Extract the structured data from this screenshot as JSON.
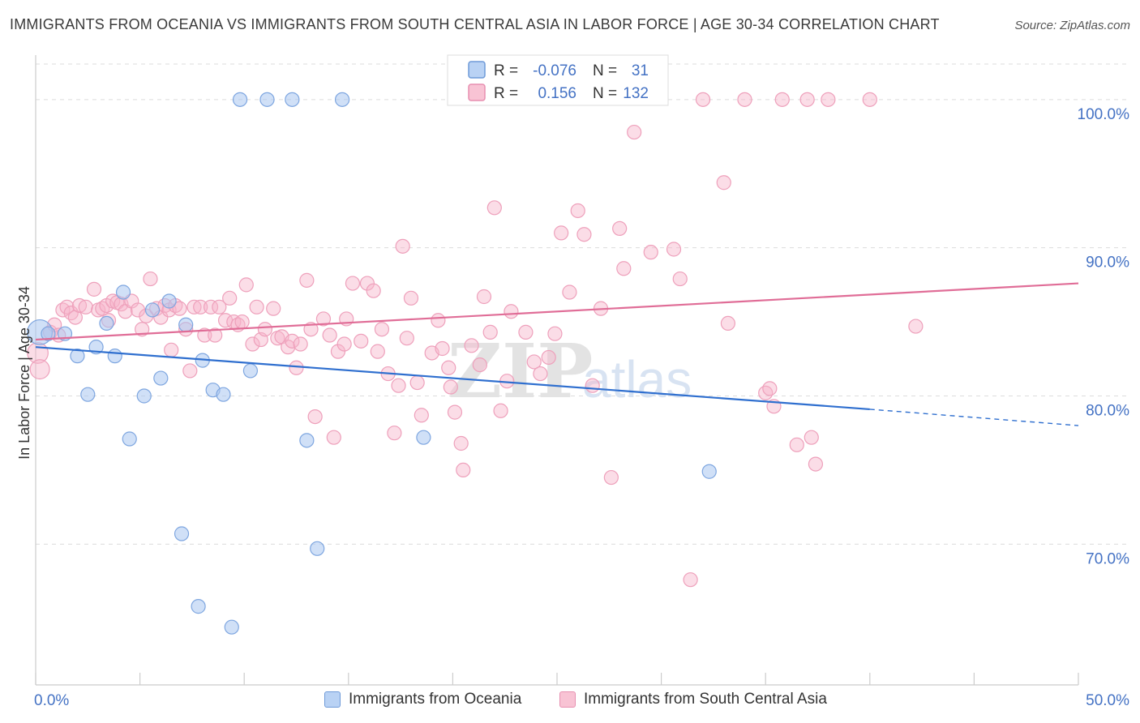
{
  "title": "IMMIGRANTS FROM OCEANIA VS IMMIGRANTS FROM SOUTH CENTRAL ASIA IN LABOR FORCE | AGE 30-34 CORRELATION CHART",
  "source": "Source: ZipAtlas.com",
  "watermark": {
    "zip": "ZIP",
    "atlas": "atlas"
  },
  "chart_data": {
    "type": "scatter",
    "ylabel": "In Labor Force | Age 30-34",
    "xlim": [
      0,
      50
    ],
    "ylim": [
      60.5,
      103
    ],
    "x_tick_labels": [
      "0.0%",
      "50.0%"
    ],
    "y_ticks": [
      70,
      80,
      90,
      100
    ],
    "y_tick_labels": [
      "70.0%",
      "80.0%",
      "90.0%",
      "100.0%"
    ],
    "grid": true,
    "legend_placement": "top-center",
    "colors": {
      "oceania": "#6699dd",
      "south_central_asia": "#ee88aa",
      "tick_label": "#4472c4",
      "line_blue": "#2f6fcf",
      "line_pink": "#e06d97"
    },
    "series": [
      {
        "name": "Immigrants from Oceania",
        "legend_stats": {
          "r_label": "R =",
          "r": "-0.076",
          "n_label": "N =",
          "n": "31"
        },
        "trend": {
          "x0": 0,
          "y0": 83.3,
          "x1": 40,
          "y1": 79.1,
          "dashed_to_x": 50,
          "dashed_to_y": 78.0
        },
        "points": [
          [
            0.2,
            84.3,
            1.8
          ],
          [
            0.6,
            84.2,
            1
          ],
          [
            1.4,
            84.2,
            1
          ],
          [
            2.0,
            82.7,
            1
          ],
          [
            2.5,
            80.1,
            1
          ],
          [
            2.9,
            83.3,
            1
          ],
          [
            3.4,
            84.9,
            1
          ],
          [
            3.8,
            82.7,
            1
          ],
          [
            4.2,
            87.0,
            1
          ],
          [
            4.5,
            77.1,
            1
          ],
          [
            5.2,
            80.0,
            1
          ],
          [
            5.6,
            85.8,
            1
          ],
          [
            6.0,
            81.2,
            1
          ],
          [
            6.4,
            86.4,
            1
          ],
          [
            7.0,
            70.7,
            1
          ],
          [
            7.2,
            84.8,
            1
          ],
          [
            7.8,
            65.8,
            1
          ],
          [
            8.0,
            82.4,
            1
          ],
          [
            8.5,
            80.4,
            1
          ],
          [
            9.0,
            80.1,
            1
          ],
          [
            9.4,
            64.4,
            1
          ],
          [
            9.8,
            100,
            1
          ],
          [
            10.3,
            81.7,
            1
          ],
          [
            11.1,
            100,
            1
          ],
          [
            12.3,
            100,
            1
          ],
          [
            13.0,
            77.0,
            1
          ],
          [
            13.5,
            69.7,
            1
          ],
          [
            14.7,
            100,
            1
          ],
          [
            18.6,
            77.2,
            1
          ],
          [
            32.3,
            74.9,
            1
          ]
        ]
      },
      {
        "name": "Immigrants from South Central Asia",
        "legend_stats": {
          "r_label": "R =",
          "r": "0.156",
          "n_label": "N =",
          "n": "132"
        },
        "trend": {
          "x0": 0,
          "y0": 83.8,
          "x1": 50,
          "y1": 87.6
        },
        "points": [
          [
            0.1,
            82.9,
            1.5
          ],
          [
            0.2,
            81.8,
            1.4
          ],
          [
            0.7,
            84.3,
            1
          ],
          [
            0.9,
            84.8,
            1
          ],
          [
            1.1,
            84.1,
            1
          ],
          [
            1.3,
            85.8,
            1
          ],
          [
            1.5,
            86.0,
            1
          ],
          [
            1.7,
            85.6,
            1
          ],
          [
            1.9,
            85.3,
            1
          ],
          [
            2.1,
            86.1,
            1
          ],
          [
            2.4,
            86.0,
            1
          ],
          [
            2.8,
            87.2,
            1
          ],
          [
            3.0,
            85.8,
            1
          ],
          [
            3.2,
            85.9,
            1
          ],
          [
            3.4,
            86.1,
            1
          ],
          [
            3.5,
            85.1,
            1
          ],
          [
            3.7,
            86.4,
            1
          ],
          [
            3.9,
            86.3,
            1
          ],
          [
            4.1,
            86.2,
            1
          ],
          [
            4.3,
            85.7,
            1
          ],
          [
            4.6,
            86.4,
            1
          ],
          [
            4.9,
            85.8,
            1
          ],
          [
            5.1,
            84.5,
            1
          ],
          [
            5.3,
            85.4,
            1
          ],
          [
            5.5,
            87.9,
            1
          ],
          [
            5.8,
            85.9,
            1
          ],
          [
            6.0,
            85.3,
            1
          ],
          [
            6.2,
            86.1,
            1
          ],
          [
            6.4,
            85.8,
            1
          ],
          [
            6.5,
            83.1,
            1
          ],
          [
            6.7,
            86.1,
            1
          ],
          [
            6.9,
            85.9,
            1
          ],
          [
            7.2,
            84.5,
            1
          ],
          [
            7.4,
            81.7,
            1
          ],
          [
            7.6,
            86.0,
            1
          ],
          [
            7.9,
            86.0,
            1
          ],
          [
            8.1,
            84.1,
            1
          ],
          [
            8.4,
            86.0,
            1
          ],
          [
            8.6,
            84.1,
            1
          ],
          [
            8.8,
            86.0,
            1
          ],
          [
            9.1,
            85.1,
            1
          ],
          [
            9.3,
            86.6,
            1
          ],
          [
            9.5,
            85.0,
            1
          ],
          [
            9.7,
            84.8,
            1
          ],
          [
            9.9,
            85.0,
            1
          ],
          [
            10.1,
            87.5,
            1
          ],
          [
            10.4,
            83.5,
            1
          ],
          [
            10.6,
            86.0,
            1
          ],
          [
            10.8,
            83.8,
            1
          ],
          [
            11.0,
            84.5,
            1
          ],
          [
            11.4,
            85.9,
            1
          ],
          [
            11.6,
            83.9,
            1
          ],
          [
            11.8,
            84.0,
            1
          ],
          [
            12.1,
            83.3,
            1
          ],
          [
            12.3,
            83.7,
            1
          ],
          [
            12.5,
            81.9,
            1
          ],
          [
            12.7,
            83.5,
            1
          ],
          [
            13.0,
            87.8,
            1
          ],
          [
            13.2,
            84.5,
            1
          ],
          [
            13.4,
            78.6,
            1
          ],
          [
            13.8,
            85.2,
            1
          ],
          [
            14.1,
            84.1,
            1
          ],
          [
            14.3,
            77.2,
            1
          ],
          [
            14.5,
            83.0,
            1
          ],
          [
            14.8,
            83.5,
            1
          ],
          [
            14.9,
            85.2,
            1
          ],
          [
            15.2,
            87.6,
            1
          ],
          [
            15.6,
            83.7,
            1
          ],
          [
            15.9,
            87.6,
            1
          ],
          [
            16.2,
            87.1,
            1
          ],
          [
            16.4,
            83.0,
            1
          ],
          [
            16.6,
            84.5,
            1
          ],
          [
            16.9,
            81.5,
            1
          ],
          [
            17.2,
            77.5,
            1
          ],
          [
            17.4,
            80.7,
            1
          ],
          [
            17.6,
            90.1,
            1
          ],
          [
            17.8,
            83.9,
            1
          ],
          [
            18.0,
            86.6,
            1
          ],
          [
            18.3,
            80.9,
            1
          ],
          [
            18.5,
            78.7,
            1
          ],
          [
            19.0,
            82.9,
            1
          ],
          [
            19.3,
            85.1,
            1
          ],
          [
            19.5,
            83.2,
            1
          ],
          [
            19.8,
            81.9,
            1
          ],
          [
            19.9,
            80.6,
            1
          ],
          [
            20.1,
            78.9,
            1
          ],
          [
            20.4,
            76.8,
            1
          ],
          [
            20.5,
            75.0,
            1
          ],
          [
            20.9,
            83.4,
            1
          ],
          [
            21.3,
            82.1,
            1
          ],
          [
            21.5,
            86.7,
            1
          ],
          [
            21.8,
            84.3,
            1
          ],
          [
            22.0,
            92.7,
            1
          ],
          [
            22.3,
            79.0,
            1
          ],
          [
            22.6,
            81.0,
            1
          ],
          [
            22.8,
            85.7,
            1
          ],
          [
            23.5,
            84.3,
            1
          ],
          [
            23.9,
            82.3,
            1
          ],
          [
            24.2,
            81.5,
            1
          ],
          [
            24.6,
            82.6,
            1
          ],
          [
            24.9,
            84.2,
            1
          ],
          [
            25.2,
            91.0,
            1
          ],
          [
            25.6,
            87.0,
            1
          ],
          [
            26.0,
            92.5,
            1
          ],
          [
            26.3,
            90.9,
            1
          ],
          [
            26.7,
            80.7,
            1
          ],
          [
            27.1,
            85.9,
            1
          ],
          [
            27.6,
            74.5,
            1
          ],
          [
            28.0,
            91.3,
            1
          ],
          [
            28.2,
            88.6,
            1
          ],
          [
            28.7,
            97.8,
            1
          ],
          [
            29.5,
            89.7,
            1
          ],
          [
            30.6,
            89.9,
            1
          ],
          [
            30.9,
            87.9,
            1
          ],
          [
            31.4,
            67.6,
            1
          ],
          [
            32.0,
            100,
            1
          ],
          [
            33.0,
            94.4,
            1
          ],
          [
            33.2,
            84.9,
            1
          ],
          [
            34.0,
            100,
            1
          ],
          [
            35.0,
            80.2,
            1
          ],
          [
            35.2,
            80.5,
            1
          ],
          [
            35.4,
            79.3,
            1
          ],
          [
            35.8,
            100,
            1
          ],
          [
            36.5,
            76.7,
            1
          ],
          [
            37.0,
            100,
            1
          ],
          [
            37.2,
            77.2,
            1
          ],
          [
            37.4,
            75.4,
            1
          ],
          [
            38.0,
            100,
            1
          ],
          [
            40.0,
            100,
            1
          ],
          [
            42.2,
            84.7,
            1
          ]
        ]
      }
    ]
  }
}
